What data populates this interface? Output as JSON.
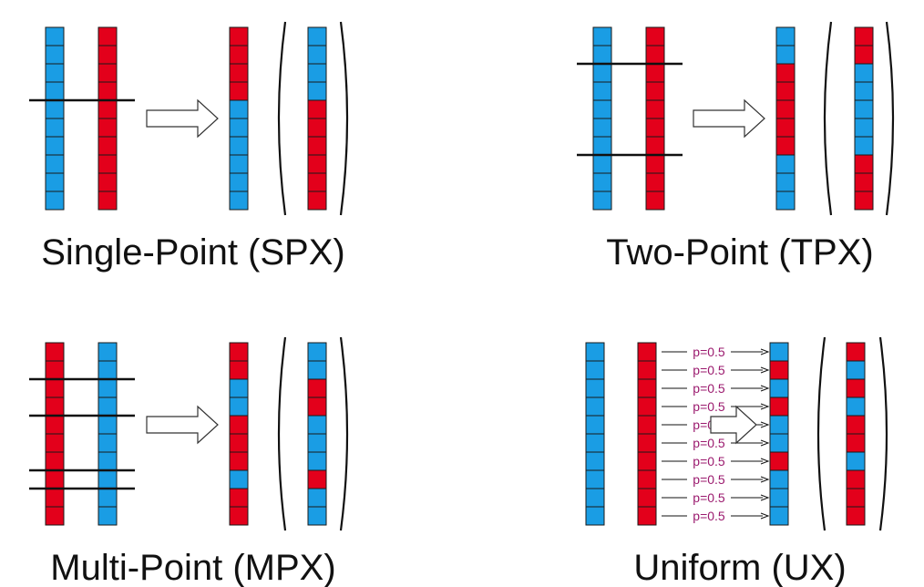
{
  "colors": {
    "blue": "#1a9de4",
    "red": "#e3001b",
    "cell_border": "#1a1a1a",
    "p_label": "#9b1a6e",
    "caption": "#111111"
  },
  "panels": [
    {
      "id": "spx",
      "caption": "Single-Point (SPX)",
      "parent_a": "BBBBBBBBBB",
      "parent_b": "RRRRRRRRRR",
      "child_a": "RRRRBBBBBB",
      "child_b": "BBBBRRRRRR",
      "cut_points": [
        4
      ]
    },
    {
      "id": "tpx",
      "caption": "Two-Point (TPX)",
      "parent_a": "BBBBBBBBBB",
      "parent_b": "RRRRRRRRRR",
      "child_a": "BBRRRRRBBB",
      "child_b": "RRBBBBBRRR",
      "cut_points": [
        2,
        7
      ]
    },
    {
      "id": "mpx",
      "caption": "Multi-Point (MPX)",
      "parent_a": "RRRRRRRRRR",
      "parent_b": "BBBBBBBBBB",
      "child_a": "RRBBRRRBRR",
      "child_b": "BBRRBBBRBB",
      "cut_points": [
        2,
        4,
        7,
        8
      ]
    },
    {
      "id": "ux",
      "caption": "Uniform (UX)",
      "parent_a": "BBBBBBBBBB",
      "parent_b": "RRRRRRRRRR",
      "child_a": "BRBRBBRBBB",
      "child_b": "RBRBRRBRRR",
      "cut_points": [],
      "swap_label": "p=0.5"
    }
  ]
}
